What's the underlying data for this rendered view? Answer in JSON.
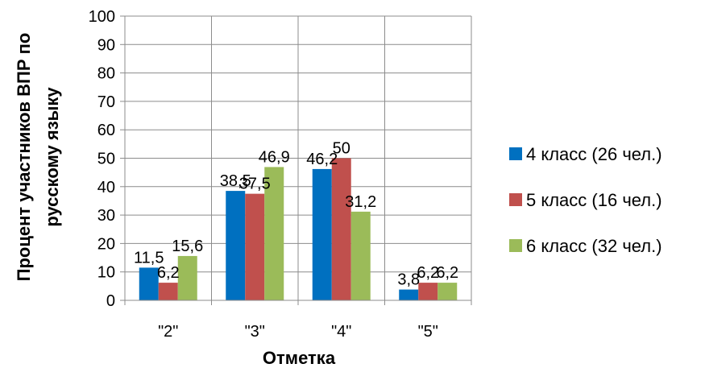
{
  "chart_data": {
    "type": "bar",
    "categories": [
      "\"2\"",
      "\"3\"",
      "\"4\"",
      "\"5\""
    ],
    "series": [
      {
        "name": "4 класс (26 чел.)",
        "values": [
          11.5,
          38.5,
          46.2,
          3.8
        ],
        "labels": [
          "11,5",
          "38,5",
          "46,2",
          "3,8"
        ],
        "color": "#0070C0"
      },
      {
        "name": "5 класс (16 чел.)",
        "values": [
          6.2,
          37.5,
          50,
          6.2
        ],
        "labels": [
          "6,2",
          "37,5",
          "50",
          "6,2"
        ],
        "color": "#C0504D"
      },
      {
        "name": "6 класс (32 чел.)",
        "values": [
          15.6,
          46.9,
          31.2,
          6.2
        ],
        "labels": [
          "15,6",
          "46,9",
          "31,2",
          "6,2"
        ],
        "color": "#9BBB59"
      }
    ],
    "yticks": [
      "0",
      "10",
      "20",
      "30",
      "40",
      "50",
      "60",
      "70",
      "80",
      "90",
      "100"
    ],
    "xlabel": "Отметка",
    "ylabel_line1": "Процент участников ВПР по",
    "ylabel_line2": "русскому языку",
    "ylim": [
      0,
      100
    ],
    "grid": true,
    "legend_position": "right"
  }
}
